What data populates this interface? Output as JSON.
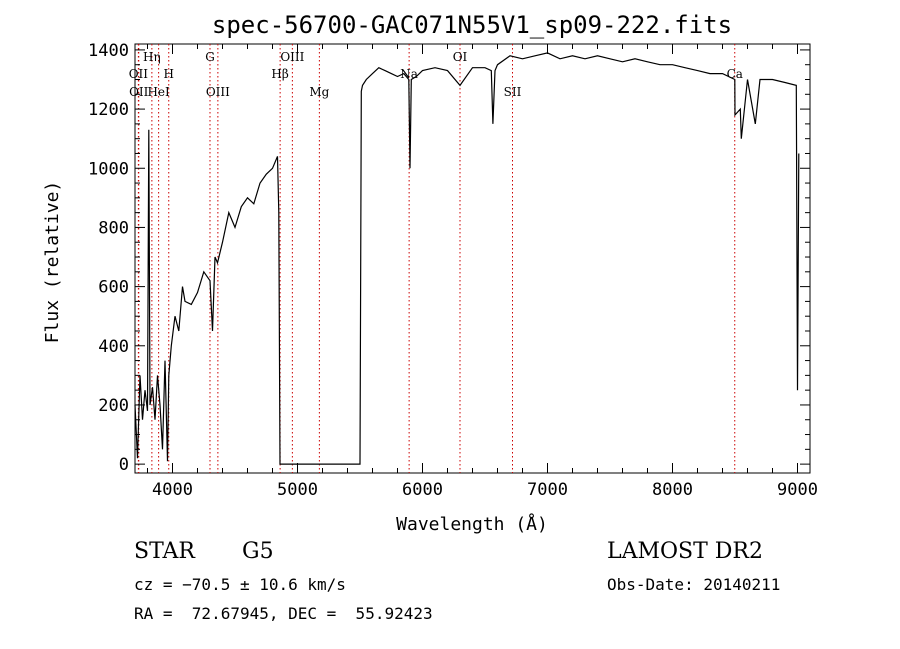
{
  "chart_data": {
    "type": "line",
    "title": "spec-56700-GAC071N55V1_sp09-222.fits",
    "xlabel": "Wavelength (Å)",
    "ylabel": "Flux (relative)",
    "xlim": [
      3700,
      9100
    ],
    "ylim": [
      -30,
      1420
    ],
    "x_ticks": [
      4000,
      5000,
      6000,
      7000,
      8000,
      9000
    ],
    "y_ticks": [
      0,
      200,
      400,
      600,
      800,
      1000,
      1200,
      1400
    ],
    "grid": false,
    "series": [
      {
        "x": [
          3700,
          3720,
          3740,
          3760,
          3780,
          3800,
          3810,
          3820,
          3840,
          3860,
          3880,
          3900,
          3920,
          3940,
          3960,
          3970,
          3990,
          4020,
          4050,
          4080,
          4100,
          4150,
          4200,
          4250,
          4300,
          4320,
          4340,
          4360,
          4400,
          4450,
          4500,
          4550,
          4600,
          4650,
          4700,
          4750,
          4800,
          4840,
          4850,
          4860,
          4870,
          4880,
          5000,
          5200,
          5400,
          5500,
          5510,
          5520,
          5550,
          5600,
          5650,
          5700,
          5750,
          5800,
          5850,
          5890,
          5900,
          5910,
          5950,
          6000,
          6100,
          6200,
          6300,
          6400,
          6500,
          6550,
          6563,
          6580,
          6600,
          6700,
          6800,
          6900,
          7000,
          7100,
          7200,
          7300,
          7400,
          7500,
          7600,
          7700,
          7800,
          7900,
          8000,
          8100,
          8200,
          8300,
          8400,
          8498,
          8500,
          8542,
          8550,
          8600,
          8662,
          8700,
          8800,
          8900,
          8990,
          9000,
          9010
        ],
        "values": [
          200,
          20,
          300,
          150,
          250,
          180,
          1130,
          200,
          260,
          150,
          300,
          200,
          50,
          350,
          10,
          300,
          400,
          500,
          450,
          600,
          550,
          540,
          580,
          650,
          620,
          450,
          700,
          680,
          750,
          850,
          800,
          870,
          900,
          880,
          950,
          980,
          1000,
          1040,
          850,
          0,
          0,
          0,
          0,
          0,
          0,
          0,
          1260,
          1280,
          1300,
          1320,
          1340,
          1330,
          1320,
          1310,
          1320,
          1300,
          1000,
          1300,
          1310,
          1330,
          1340,
          1330,
          1280,
          1340,
          1340,
          1330,
          1150,
          1330,
          1350,
          1380,
          1370,
          1380,
          1390,
          1370,
          1380,
          1370,
          1380,
          1370,
          1360,
          1370,
          1360,
          1350,
          1350,
          1340,
          1330,
          1320,
          1320,
          1300,
          1180,
          1200,
          1100,
          1300,
          1150,
          1300,
          1300,
          1290,
          1280,
          250,
          1050
        ]
      }
    ],
    "lines": [
      {
        "x": 3727,
        "label": "OII",
        "row": 1
      },
      {
        "x": 3730,
        "label": "OII",
        "row": 2
      },
      {
        "x": 3835,
        "label": "Hη",
        "row": 0
      },
      {
        "x": 3889,
        "label": "HeI",
        "row": 2
      },
      {
        "x": 3970,
        "label": "H",
        "row": 1
      },
      {
        "x": 4300,
        "label": "G",
        "row": 0
      },
      {
        "x": 4363,
        "label": "OIII",
        "row": 2
      },
      {
        "x": 4861,
        "label": "Hβ",
        "row": 1
      },
      {
        "x": 4959,
        "label": "OIII",
        "row": 0
      },
      {
        "x": 5175,
        "label": "Mg",
        "row": 2
      },
      {
        "x": 5893,
        "label": "Na",
        "row": 1
      },
      {
        "x": 6300,
        "label": "OI",
        "row": 0
      },
      {
        "x": 6720,
        "label": "SII",
        "row": 2
      },
      {
        "x": 8498,
        "label": "Ca",
        "row": 1
      }
    ]
  },
  "info": {
    "object_class": "STAR",
    "subclass": "G5",
    "survey": "LAMOST DR2",
    "cz": "cz = −70.5 ± 10.6 km/s",
    "obs_date": "Obs-Date: 20140211",
    "coords": "RA =  72.67945, DEC =  55.92423"
  }
}
